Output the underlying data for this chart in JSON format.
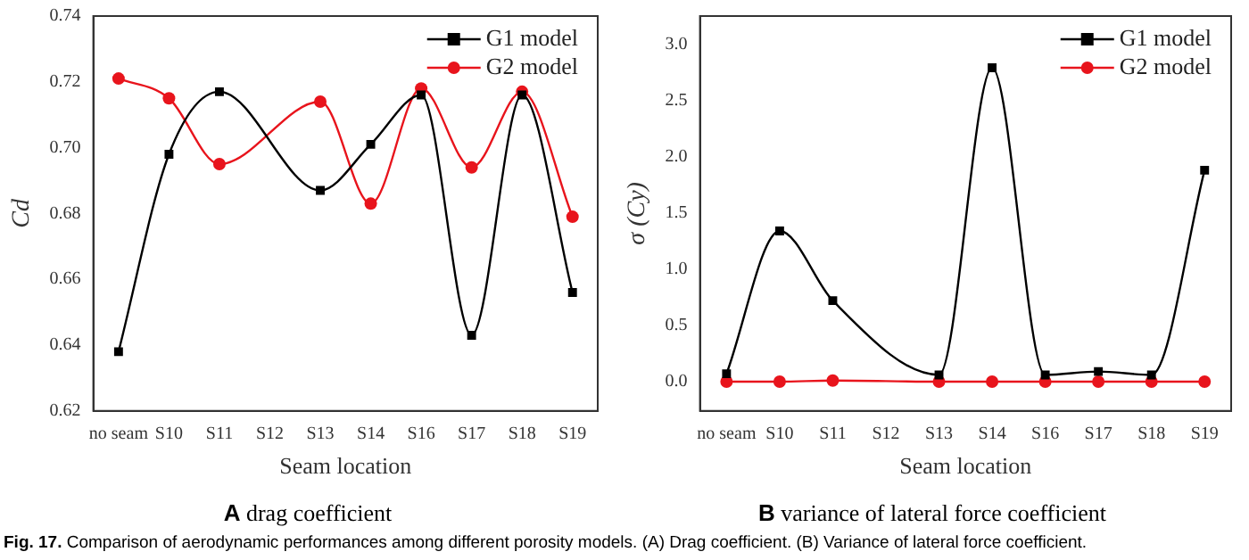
{
  "chart_data": [
    {
      "type": "line",
      "title": "A drag coefficient",
      "xlabel": "Seam location",
      "ylabel": "Cd",
      "categories": [
        "no seam",
        "S10",
        "S11",
        "S12",
        "S13",
        "S14",
        "S16",
        "S17",
        "S18",
        "S19"
      ],
      "series": [
        {
          "name": "G1 model",
          "color": "#000000",
          "marker": "square",
          "values": [
            0.638,
            0.698,
            0.717,
            null,
            0.687,
            0.701,
            0.716,
            0.643,
            0.716,
            0.656
          ]
        },
        {
          "name": "G2 model",
          "color": "#e8141c",
          "marker": "circle",
          "values": [
            0.721,
            0.715,
            0.695,
            null,
            0.714,
            0.683,
            0.718,
            0.694,
            0.717,
            0.679
          ]
        }
      ],
      "ylim": [
        0.62,
        0.74
      ],
      "yticks": [
        0.62,
        0.64,
        0.66,
        0.68,
        {
          "value": 0.7,
          "label": "0.70"
        },
        0.72,
        0.74
      ],
      "grid": false,
      "legend": "top right",
      "annotations": [
        "Fig. 17. Comparison of aerodynamic performances among different porosity models. (A) Drag coefficient. (B) Variance of lateral force coefficient."
      ]
    },
    {
      "type": "line",
      "title": "B variance of lateral force coefficient",
      "xlabel": "Seam location",
      "ylabel": "σ (Cy)",
      "categories": [
        "no seam",
        "S10",
        "S11",
        "S12",
        "S13",
        "S14",
        "S16",
        "S17",
        "S18",
        "S19"
      ],
      "series": [
        {
          "name": "G1 model",
          "color": "#000000",
          "marker": "square",
          "values": [
            0.07,
            1.34,
            0.72,
            null,
            0.06,
            2.79,
            0.06,
            0.09,
            0.06,
            1.88
          ]
        },
        {
          "name": "G2 model",
          "color": "#e8141c",
          "marker": "circle",
          "values": [
            0.0,
            0.0,
            0.01,
            null,
            0.0,
            0.0,
            0.0,
            0.0,
            0.0,
            0.0
          ]
        }
      ],
      "ylim": [
        -0.26,
        3.25
      ],
      "yticks": [
        {
          "value": 0,
          "label": "0.0"
        },
        0.5,
        {
          "value": 1,
          "label": "1.0"
        },
        1.5,
        {
          "value": 2,
          "label": "2.0"
        },
        2.5,
        {
          "value": 3,
          "label": "3.0"
        }
      ],
      "grid": false,
      "legend": "top right"
    }
  ]
}
